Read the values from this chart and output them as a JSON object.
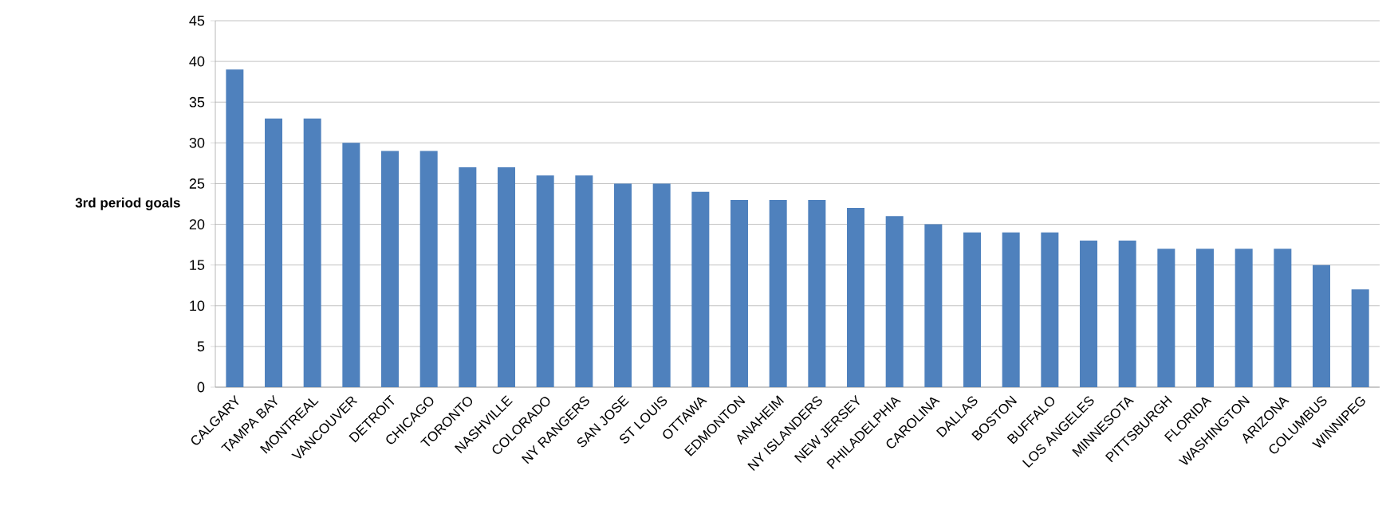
{
  "chart_data": {
    "type": "bar",
    "ylabel": "3rd period goals",
    "categories": [
      "CALGARY",
      "TAMPA BAY",
      "MONTREAL",
      "VANCOUVER",
      "DETROIT",
      "CHICAGO",
      "TORONTO",
      "NASHVILLE",
      "COLORADO",
      "NY RANGERS",
      "SAN JOSE",
      "ST LOUIS",
      "OTTAWA",
      "EDMONTON",
      "ANAHEIM",
      "NY ISLANDERS",
      "NEW JERSEY",
      "PHILADELPHIA",
      "CAROLINA",
      "DALLAS",
      "BOSTON",
      "BUFFALO",
      "LOS ANGELES",
      "MINNESOTA",
      "PITTSBURGH",
      "FLORIDA",
      "WASHINGTON",
      "ARIZONA",
      "COLUMBUS",
      "WINNIPEG"
    ],
    "values": [
      39,
      33,
      33,
      30,
      29,
      29,
      27,
      27,
      26,
      26,
      25,
      25,
      24,
      23,
      23,
      23,
      22,
      21,
      20,
      19,
      19,
      19,
      18,
      18,
      17,
      17,
      17,
      17,
      15,
      12
    ],
    "color": "#4f81bd",
    "ylim": [
      0,
      45
    ],
    "yticks": [
      0,
      5,
      10,
      15,
      20,
      25,
      30,
      35,
      40,
      45
    ],
    "grid": "y"
  }
}
